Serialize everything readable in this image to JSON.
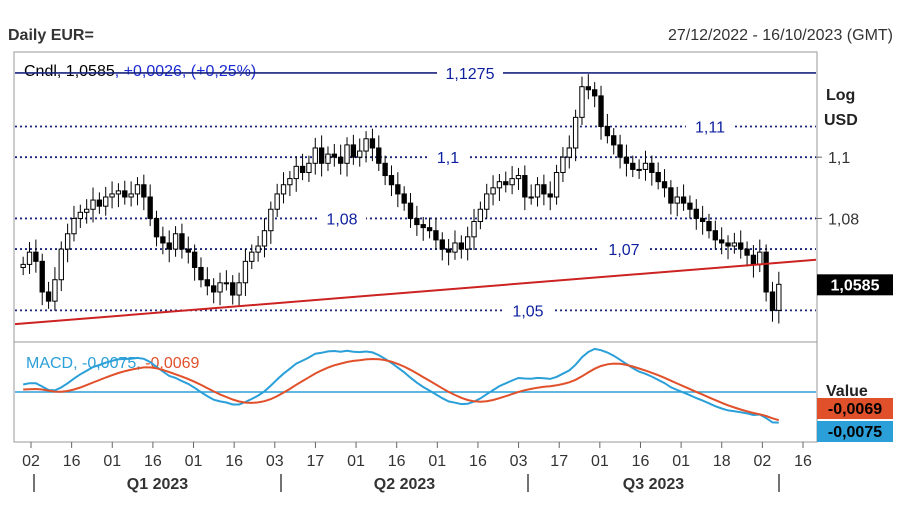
{
  "header": {
    "title": "Daily EUR=",
    "date_range": "27/12/2022 - 16/10/2023 (GMT)"
  },
  "chart_data": [
    {
      "type": "candlestick",
      "legend_prefix": "Cndl, ",
      "legend_value": "1,0585",
      "legend_change": ", +0,0026, (+0,25%)",
      "scale_label": "Log",
      "unit_label": "USD",
      "last_price_label": "1,0585",
      "last_price": 1.0585,
      "ylim": [
        1.04,
        1.134
      ],
      "ytick_labels": [
        "1,1",
        "1,08"
      ],
      "ytick_values": [
        1.1,
        1.08
      ],
      "horizontal_levels": [
        {
          "value": 1.1275,
          "label": "1,1275",
          "style": "solid"
        },
        {
          "value": 1.11,
          "label": "1,11",
          "style": "dotted"
        },
        {
          "value": 1.1,
          "label": "1,1",
          "style": "dotted"
        },
        {
          "value": 1.08,
          "label": "1,08",
          "style": "dotted"
        },
        {
          "value": 1.07,
          "label": "1,07",
          "style": "dotted"
        },
        {
          "value": 1.05,
          "label": "1,05",
          "style": "dotted"
        }
      ],
      "trendline": {
        "start_value": 1.0455,
        "end_value": 1.0665,
        "color": "#cc2222"
      },
      "closes": [
        1.065,
        1.069,
        1.066,
        1.056,
        1.053,
        1.06,
        1.07,
        1.075,
        1.08,
        1.082,
        1.083,
        1.086,
        1.084,
        1.087,
        1.088,
        1.089,
        1.087,
        1.088,
        1.091,
        1.087,
        1.08,
        1.074,
        1.072,
        1.07,
        1.075,
        1.07,
        1.069,
        1.064,
        1.06,
        1.058,
        1.056,
        1.059,
        1.059,
        1.055,
        1.059,
        1.066,
        1.069,
        1.071,
        1.076,
        1.083,
        1.088,
        1.091,
        1.093,
        1.097,
        1.095,
        1.098,
        1.103,
        1.098,
        1.101,
        1.1,
        1.098,
        1.104,
        1.1,
        1.102,
        1.106,
        1.103,
        1.098,
        1.094,
        1.091,
        1.088,
        1.085,
        1.08,
        1.078,
        1.077,
        1.076,
        1.073,
        1.07,
        1.069,
        1.072,
        1.07,
        1.074,
        1.079,
        1.083,
        1.088,
        1.09,
        1.092,
        1.091,
        1.093,
        1.094,
        1.087,
        1.087,
        1.091,
        1.088,
        1.087,
        1.095,
        1.1,
        1.103,
        1.113,
        1.123,
        1.122,
        1.12,
        1.11,
        1.107,
        1.104,
        1.1,
        1.098,
        1.096,
        1.096,
        1.098,
        1.095,
        1.092,
        1.09,
        1.085,
        1.087,
        1.085,
        1.083,
        1.08,
        1.079,
        1.076,
        1.073,
        1.072,
        1.071,
        1.072,
        1.07,
        1.068,
        1.065,
        1.069,
        1.056,
        1.05,
        1.0585
      ],
      "macd_legend_prefix": "MACD, ",
      "macd_legend_value": "-0,0075",
      "macd_legend_sep": ", ",
      "signal_legend_value": "-0,0069",
      "macd_axis_label": "Value",
      "macd_value": -0.0075,
      "signal_value": -0.0069,
      "macd_ylim": [
        -0.012,
        0.012
      ],
      "macd_zero": 0,
      "x_tick_labels": [
        "02",
        "16",
        "01",
        "16",
        "01",
        "16",
        "03",
        "17",
        "01",
        "16",
        "01",
        "16",
        "03",
        "17",
        "01",
        "16",
        "01",
        "18",
        "02",
        "16"
      ],
      "quarter_labels": [
        "Q1 2023",
        "Q2 2023",
        "Q3 2023"
      ],
      "colors": {
        "candle": "#000000",
        "level_line": "#1a237e",
        "level_text": "#0d1f9e",
        "trendline": "#cc2222",
        "macd": "#2a9fd8",
        "signal": "#e0502a",
        "macd_zero": "#2a9fd8",
        "last_price_bg": "#000000",
        "signal_badge_bg": "#e0502a",
        "macd_badge_bg": "#2a9fd8"
      }
    }
  ]
}
